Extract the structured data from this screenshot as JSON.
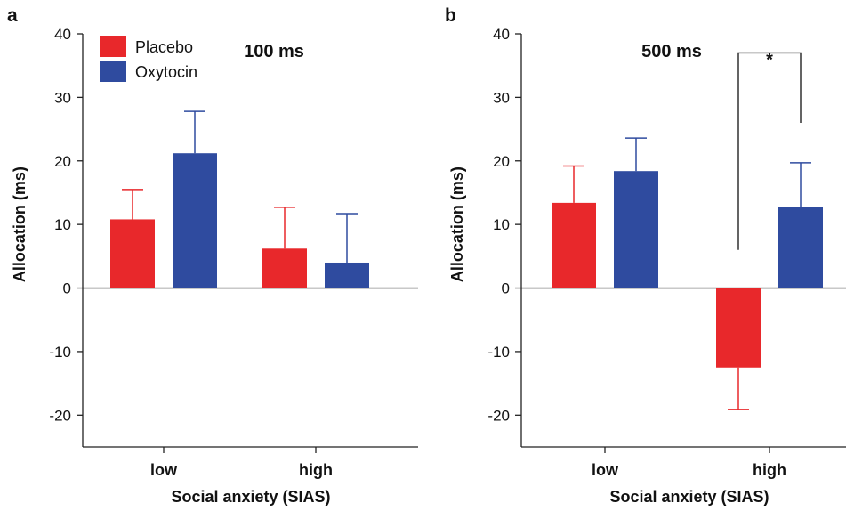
{
  "chart_data": [
    {
      "panel_label": "a",
      "type": "bar",
      "title": "100 ms",
      "xlabel": "Social anxiety (SIAS)",
      "ylabel": "Allocation (ms)",
      "categories": [
        "low",
        "high"
      ],
      "ylim": [
        -25,
        40
      ],
      "yticks": [
        -20,
        -10,
        0,
        10,
        20,
        30,
        40
      ],
      "legend": "top-left",
      "series": [
        {
          "name": "Placebo",
          "color": "#e8282b",
          "values": [
            10.8,
            6.2
          ],
          "errors": [
            4.7,
            6.5
          ]
        },
        {
          "name": "Oxytocin",
          "color": "#2f4b9f",
          "values": [
            21.2,
            4.0
          ],
          "errors": [
            6.6,
            7.7
          ]
        }
      ]
    },
    {
      "panel_label": "b",
      "type": "bar",
      "title": "500 ms",
      "xlabel": "Social anxiety (SIAS)",
      "ylabel": "Allocation (ms)",
      "categories": [
        "low",
        "high"
      ],
      "ylim": [
        -25,
        40
      ],
      "yticks": [
        -20,
        -10,
        0,
        10,
        20,
        30,
        40
      ],
      "series": [
        {
          "name": "Placebo",
          "color": "#e8282b",
          "values": [
            13.4,
            -12.5
          ],
          "errors": [
            5.8,
            6.6
          ]
        },
        {
          "name": "Oxytocin",
          "color": "#2f4b9f",
          "values": [
            18.4,
            12.8
          ],
          "errors": [
            5.2,
            6.9
          ]
        }
      ],
      "annotation": {
        "text": "*",
        "between": "high: Placebo vs Oxytocin"
      }
    }
  ]
}
